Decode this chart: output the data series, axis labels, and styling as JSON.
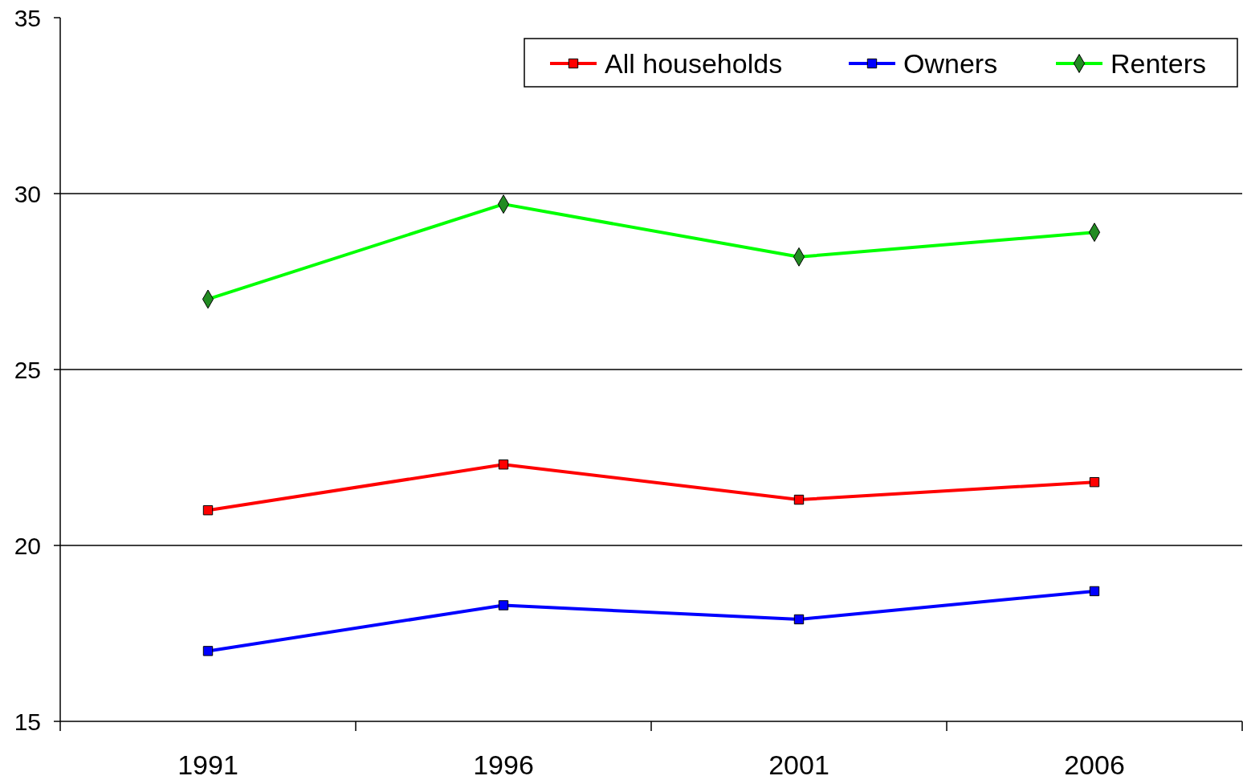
{
  "chart_data": {
    "type": "line",
    "categories": [
      "1991",
      "1996",
      "2001",
      "2006"
    ],
    "series": [
      {
        "name": "All households",
        "color": "#ff0000",
        "marker": "square",
        "values": [
          21.0,
          22.3,
          21.3,
          21.8
        ]
      },
      {
        "name": "Owners",
        "color": "#0000ff",
        "marker": "square",
        "values": [
          17.0,
          18.3,
          17.9,
          18.7
        ]
      },
      {
        "name": "Renters",
        "color": "#00ff00",
        "marker": "diamond",
        "values": [
          27.0,
          29.7,
          28.2,
          28.9
        ]
      }
    ],
    "ylim": [
      15,
      35
    ],
    "yticks": [
      15,
      20,
      25,
      30,
      35
    ],
    "grid": "y",
    "legend": "top right"
  }
}
